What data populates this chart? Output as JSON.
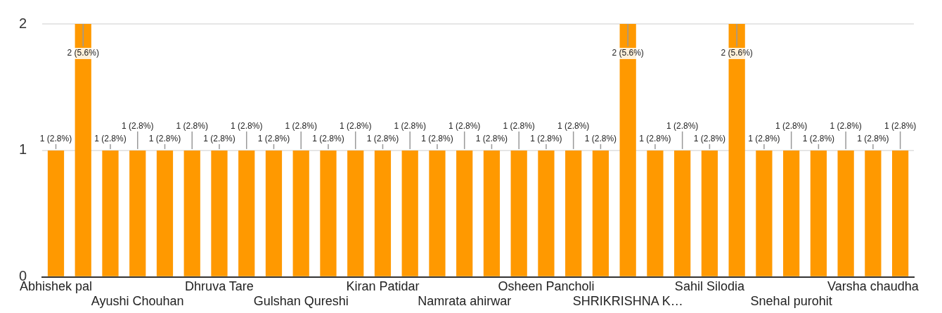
{
  "chart_data": {
    "type": "bar",
    "categories": [
      "Abhishek pal",
      null,
      null,
      "Ayushi Chouhan",
      null,
      null,
      "Dhruva Tare",
      null,
      null,
      "Gulshan Qureshi",
      null,
      null,
      "Kiran Patidar",
      null,
      null,
      "Namrata ahirwar",
      null,
      null,
      "Osheen Pancholi",
      null,
      null,
      "SHRIKRISHNA K…",
      null,
      null,
      "Sahil Silodia",
      null,
      null,
      "Snehal purohit",
      null,
      null,
      "Varsha chaudha",
      null
    ],
    "values": [
      1,
      2,
      1,
      1,
      1,
      1,
      1,
      1,
      1,
      1,
      1,
      1,
      1,
      1,
      1,
      1,
      1,
      1,
      1,
      1,
      1,
      2,
      1,
      1,
      1,
      2,
      1,
      1,
      1,
      1,
      1,
      1
    ],
    "value_labels": [
      "1 (2.8%)",
      "2 (5.6%)",
      "1 (2.8%)",
      "1 (2.8%)",
      "1 (2.8%)",
      "1 (2.8%)",
      "1 (2.8%)",
      "1 (2.8%)",
      "1 (2.8%)",
      "1 (2.8%)",
      "1 (2.8%)",
      "1 (2.8%)",
      "1 (2.8%)",
      "1 (2.8%)",
      "1 (2.8%)",
      "1 (2.8%)",
      "1 (2.8%)",
      "1 (2.8%)",
      "1 (2.8%)",
      "1 (2.8%)",
      "1 (2.8%)",
      "2 (5.6%)",
      "1 (2.8%)",
      "1 (2.8%)",
      "1 (2.8%)",
      "2 (5.6%)",
      "1 (2.8%)",
      "1 (2.8%)",
      "1 (2.8%)",
      "1 (2.8%)",
      "1 (2.8%)",
      "1 (2.8%)"
    ],
    "color": "#ff9900",
    "ylim": [
      0,
      2
    ],
    "yticks": [
      0,
      1,
      2
    ],
    "grid": "y",
    "legend": false
  }
}
